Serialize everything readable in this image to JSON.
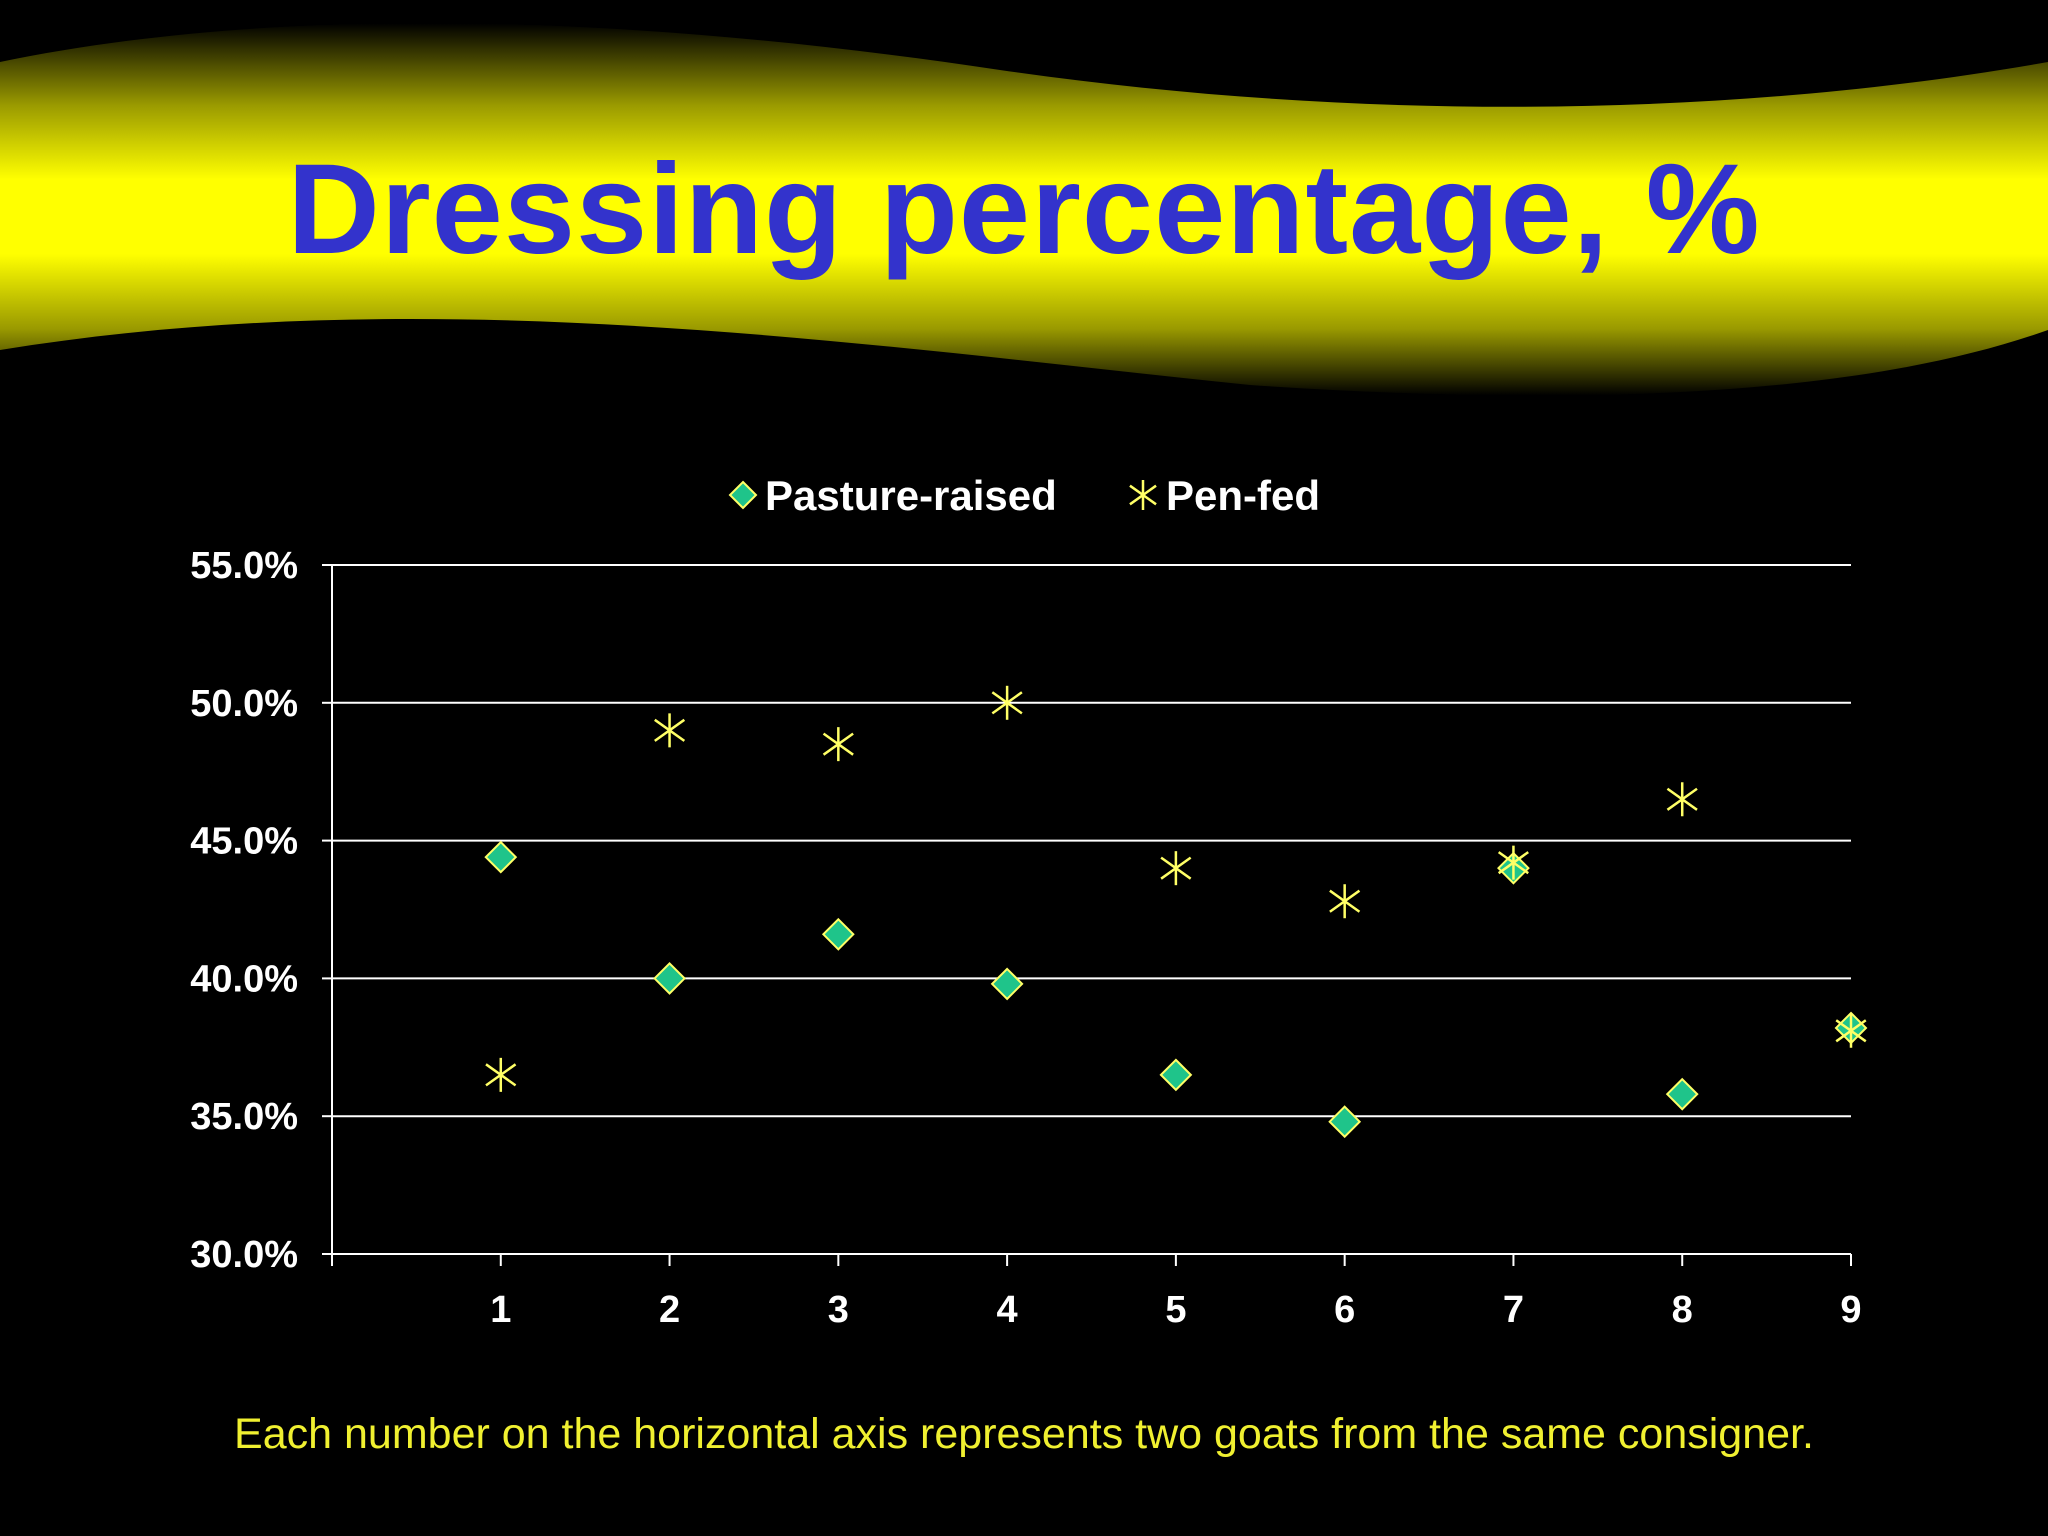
{
  "slide": {
    "title": "Dressing percentage, %",
    "footnote": "Each number on the horizontal axis represents two goats from the same consigner.",
    "colors": {
      "background": "#000000",
      "banner": "#ffff00",
      "title": "#3333cc",
      "footnote": "#f0f030"
    }
  },
  "chart_data": {
    "type": "scatter",
    "title": "",
    "xlabel": "",
    "ylabel": "",
    "x": [
      1,
      2,
      3,
      4,
      5,
      6,
      7,
      8,
      9
    ],
    "x_tick_labels": [
      "1",
      "2",
      "3",
      "4",
      "5",
      "6",
      "7",
      "8",
      "9"
    ],
    "y_tick_labels": [
      "55.0%",
      "50.0%",
      "45.0%",
      "40.0%",
      "35.0%",
      "30.0%"
    ],
    "xlim": [
      0,
      9
    ],
    "ylim": [
      30,
      55
    ],
    "y_ticks": [
      30,
      35,
      40,
      45,
      50,
      55
    ],
    "grid": "horizontal",
    "legend_position": "top-center",
    "series": [
      {
        "name": "Pasture-raised",
        "marker": "diamond",
        "color": "#1fc48a",
        "stroke": "#ffff66",
        "values": [
          44.4,
          40.0,
          41.6,
          39.8,
          36.5,
          34.8,
          44.0,
          35.8,
          38.2
        ]
      },
      {
        "name": "Pen-fed",
        "marker": "asterisk",
        "color": "#ffff66",
        "values": [
          36.5,
          49.0,
          48.5,
          50.0,
          44.0,
          42.8,
          44.2,
          46.5,
          38.1
        ]
      }
    ]
  }
}
